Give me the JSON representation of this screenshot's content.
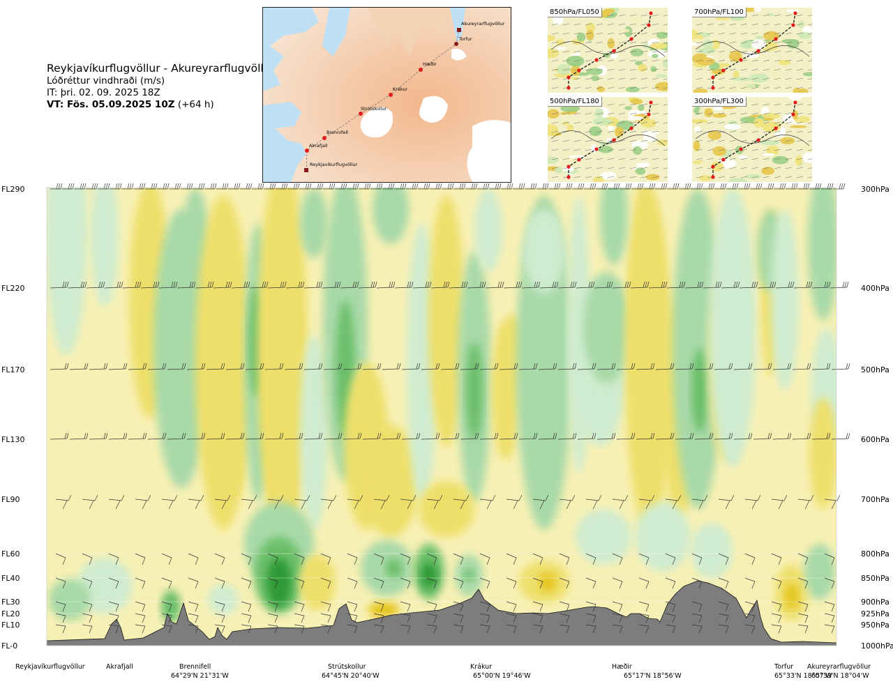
{
  "header": {
    "route_title": "Reykjavíkurflugvöllur - Akureyrarflugvöllur",
    "variable": "Lóðréttur vindhraði (m/s)",
    "init_time": "IT: þri. 02. 09. 2025 18Z",
    "valid_prefix": "VT: Fös. 05.09.2025 10Z",
    "valid_suffix": "(+64 h)"
  },
  "map": {
    "waypoints": [
      "Akureyrarflugvöllur",
      "Torfur",
      "Hæðir",
      "Krákur",
      "Strútskollur",
      "Brennifell",
      "Akrafjall",
      "Reykjavíkurflugvöllur"
    ]
  },
  "thumbnails": [
    {
      "label": "850hPa/FL050"
    },
    {
      "label": "700hPa/FL100"
    },
    {
      "label": "500hPa/FL180"
    },
    {
      "label": "300hPa/FL300"
    }
  ],
  "chart_data": {
    "type": "heatmap",
    "title": "Lóðréttur vindhraði (m/s)",
    "levels": [
      {
        "fl": "FL290",
        "hpa": "300hPa"
      },
      {
        "fl": "FL220",
        "hpa": "400hPa"
      },
      {
        "fl": "FL170",
        "hpa": "500hPa"
      },
      {
        "fl": "FL130",
        "hpa": "600hPa"
      },
      {
        "fl": "FL90",
        "hpa": "700hPa"
      },
      {
        "fl": "FL60",
        "hpa": "800hPa"
      },
      {
        "fl": "FL40",
        "hpa": "850hPa"
      },
      {
        "fl": "FL30",
        "hpa": "900hPa"
      },
      {
        "fl": "FL20",
        "hpa": "925hPa"
      },
      {
        "fl": "FL10",
        "hpa": "950hPa"
      },
      {
        "fl": "FL-0",
        "hpa": "1000hPa"
      }
    ],
    "waypoints": [
      {
        "name": "Reykjavíkurflugvöllur",
        "coord": ""
      },
      {
        "name": "Akrafjall",
        "coord": ""
      },
      {
        "name": "Brennifell",
        "coord": "64°29'N 21°31'W"
      },
      {
        "name": "Strútskollur",
        "coord": "64°45'N 20°40'W"
      },
      {
        "name": "Krákur",
        "coord": "65°00'N 19°46'W"
      },
      {
        "name": "Hæðir",
        "coord": "65°17'N 18°56'W"
      },
      {
        "name": "Torfur",
        "coord": "65°33'N 18°07'W"
      },
      {
        "name": "Akureyrarflugvöllur",
        "coord": "65°39'N 18°04'W"
      }
    ],
    "colors": {
      "strong_down": "#2e9a35",
      "down": "#6cbf6a",
      "weak_down": "#a8d9a8",
      "slight_down": "#d0ecd0",
      "neutral": "#f7fbe3",
      "slight_up": "#f7f0b4",
      "up": "#eedf6a",
      "strong_up": "#e5c51e",
      "terrain": "#7d7d7d"
    }
  }
}
